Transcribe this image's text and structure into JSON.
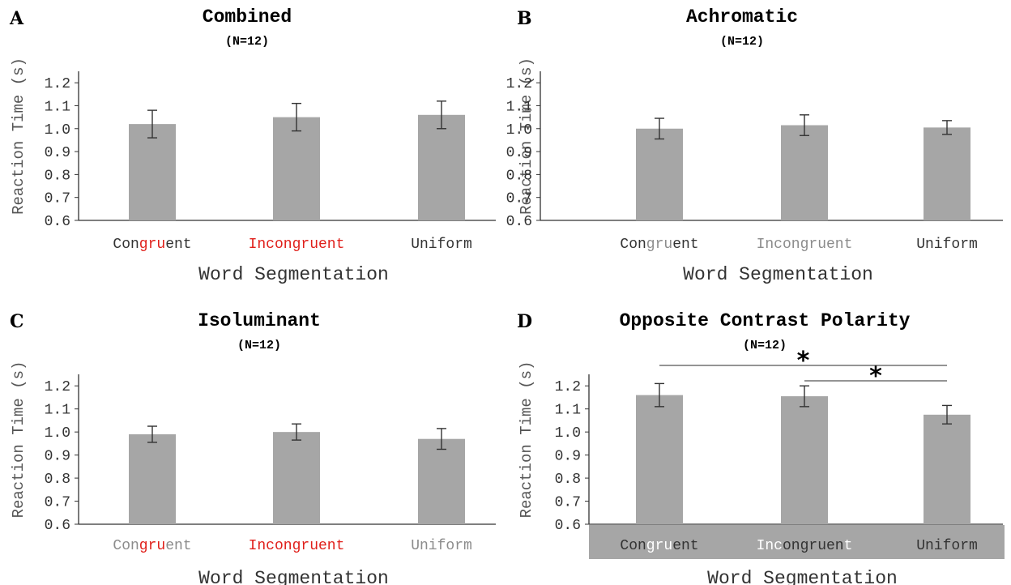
{
  "colors": {
    "bar": "#a6a6a6",
    "dark_text": "#333333",
    "red": "#e0201b",
    "gray_text": "#8c8c8c",
    "white": "#ffffff",
    "panel_d_band": "#a6a6a6"
  },
  "chart_data": [
    {
      "id": "A",
      "type": "bar",
      "letter": "A",
      "title": "Combined",
      "subtitle": "(N=12)",
      "xlabel": "Word Segmentation",
      "ylabel": "Reaction Time (s)",
      "ylim": [
        0.6,
        1.25
      ],
      "yticks": [
        0.6,
        0.7,
        0.8,
        0.9,
        1.0,
        1.1,
        1.2
      ],
      "ytick_labels": [
        "0.6",
        "0.7",
        "0.8",
        "0.9",
        "1.0",
        "1.1",
        "1.2"
      ],
      "categories": [
        "Congruent",
        "Incongruent",
        "Uniform"
      ],
      "category_segments": [
        [
          {
            "t": "Con",
            "c": "dark"
          },
          {
            "t": "gru",
            "c": "red"
          },
          {
            "t": "ent",
            "c": "dark"
          }
        ],
        [
          {
            "t": "Incongruent",
            "c": "red"
          }
        ],
        [
          {
            "t": "Uniform",
            "c": "dark"
          }
        ]
      ],
      "values": [
        1.02,
        1.05,
        1.06
      ],
      "errors": [
        0.06,
        0.06,
        0.06
      ],
      "band": false,
      "significance": []
    },
    {
      "id": "B",
      "type": "bar",
      "letter": "B",
      "title": "Achromatic",
      "subtitle": "(N=12)",
      "xlabel": "Word Segmentation",
      "ylabel": "Reaction Time (s)",
      "ylim": [
        0.6,
        1.25
      ],
      "yticks": [
        0.6,
        0.7,
        0.8,
        0.9,
        1.0,
        1.1,
        1.2
      ],
      "ytick_labels": [
        "0.6",
        "0.7",
        "0.8",
        "0.9",
        "1.0",
        "1.1",
        "1.2"
      ],
      "categories": [
        "Congruent",
        "Incongruent",
        "Uniform"
      ],
      "category_segments": [
        [
          {
            "t": "Con",
            "c": "dark"
          },
          {
            "t": "gru",
            "c": "gray"
          },
          {
            "t": "ent",
            "c": "dark"
          }
        ],
        [
          {
            "t": "Incongruent",
            "c": "gray"
          }
        ],
        [
          {
            "t": "Uniform",
            "c": "dark"
          }
        ]
      ],
      "values": [
        1.0,
        1.015,
        1.005
      ],
      "errors": [
        0.045,
        0.045,
        0.03
      ],
      "band": false,
      "significance": []
    },
    {
      "id": "C",
      "type": "bar",
      "letter": "C",
      "title": "Isoluminant",
      "subtitle": "(N=12)",
      "xlabel": "Word Segmentation",
      "ylabel": "Reaction Time (s)",
      "ylim": [
        0.6,
        1.25
      ],
      "yticks": [
        0.6,
        0.7,
        0.8,
        0.9,
        1.0,
        1.1,
        1.2
      ],
      "ytick_labels": [
        "0.6",
        "0.7",
        "0.8",
        "0.9",
        "1.0",
        "1.1",
        "1.2"
      ],
      "categories": [
        "Congruent",
        "Incongruent",
        "Uniform"
      ],
      "category_segments": [
        [
          {
            "t": "Con",
            "c": "gray"
          },
          {
            "t": "gru",
            "c": "red"
          },
          {
            "t": "ent",
            "c": "gray"
          }
        ],
        [
          {
            "t": "Inc",
            "c": "red"
          },
          {
            "t": "ongru",
            "c": "red"
          },
          {
            "t": "ent",
            "c": "red"
          }
        ],
        [
          {
            "t": "Uniform",
            "c": "gray"
          }
        ]
      ],
      "values": [
        0.99,
        1.0,
        0.97
      ],
      "errors": [
        0.035,
        0.035,
        0.045
      ],
      "band": false,
      "significance": []
    },
    {
      "id": "D",
      "type": "bar",
      "letter": "D",
      "title": "Opposite Contrast Polarity",
      "subtitle": "(N=12)",
      "xlabel": "Word Segmentation",
      "ylabel": "Reaction Time (s)",
      "ylim": [
        0.6,
        1.25
      ],
      "yticks": [
        0.6,
        0.7,
        0.8,
        0.9,
        1.0,
        1.1,
        1.2
      ],
      "ytick_labels": [
        "0.6",
        "0.7",
        "0.8",
        "0.9",
        "1.0",
        "1.1",
        "1.2"
      ],
      "categories": [
        "Congruent",
        "Incongruent",
        "Uniform"
      ],
      "category_segments": [
        [
          {
            "t": "Con",
            "c": "dark"
          },
          {
            "t": "gru",
            "c": "white"
          },
          {
            "t": "ent",
            "c": "dark"
          }
        ],
        [
          {
            "t": "Inc",
            "c": "white"
          },
          {
            "t": "ong",
            "c": "dark"
          },
          {
            "t": "ruen",
            "c": "dark"
          },
          {
            "t": "t",
            "c": "white"
          }
        ],
        [
          {
            "t": "Uniform",
            "c": "dark"
          }
        ]
      ],
      "values": [
        1.16,
        1.155,
        1.075
      ],
      "errors": [
        0.05,
        0.045,
        0.04
      ],
      "band": true,
      "significance": [
        {
          "from": 0,
          "to": 2,
          "label": "*"
        },
        {
          "from": 1,
          "to": 2,
          "label": "*"
        }
      ]
    }
  ]
}
